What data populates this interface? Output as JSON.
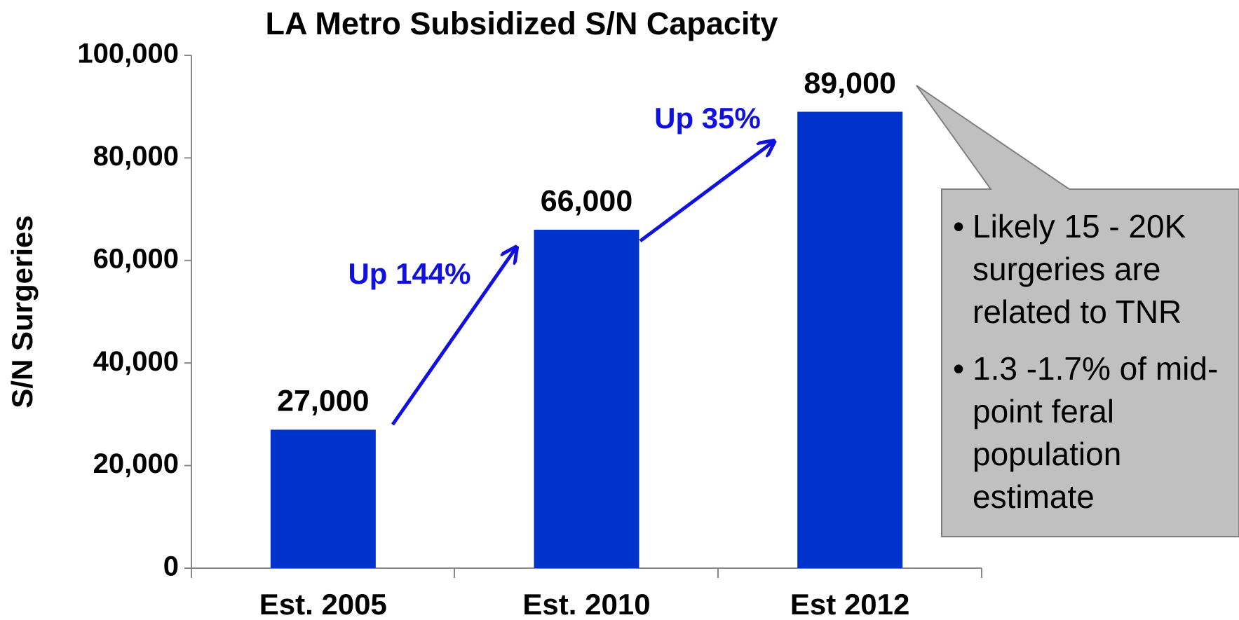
{
  "chart_data": {
    "type": "bar",
    "title": "LA Metro Subsidized S/N Capacity",
    "ylabel": "S/N Surgeries",
    "categories": [
      "Est. 2005",
      "Est. 2010",
      "Est 2012"
    ],
    "values": [
      27000,
      66000,
      89000
    ],
    "value_labels": [
      "27,000",
      "66,000",
      "89,000"
    ],
    "color": "#0033cc",
    "ylim": [
      0,
      100000
    ],
    "yticks": [
      0,
      {
        "value": 20000,
        "label": "20,000"
      },
      {
        "value": 40000,
        "label": "40,000"
      },
      {
        "value": 60000,
        "label": "60,000"
      },
      {
        "value": 80000,
        "label": "80,000"
      },
      {
        "value": 100000,
        "label": "100,000"
      }
    ],
    "annotations": [
      "Up 144%",
      "Up 35%"
    ],
    "callout": [
      "Likely 15 - 20K surgeries are related to TNR",
      "1.3 -1.7% of mid-point feral population estimate"
    ]
  }
}
